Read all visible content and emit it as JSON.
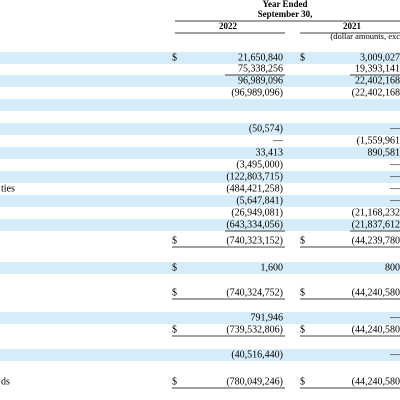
{
  "header": {
    "period_lines": [
      "Year Ended",
      "September 30,"
    ],
    "columns": [
      "2022",
      "2021"
    ],
    "note": "(dollar amounts, exc"
  },
  "rows": [
    {
      "dollar_2022": "$",
      "v2022": "21,650,840",
      "dollar_2021": "$",
      "v2021": "3,009,027"
    },
    {
      "v2022": "75,338,256",
      "v2021": "19,393,141"
    },
    {
      "v2022": "96,989,096",
      "v2021": "22,402,168"
    },
    {
      "v2022": "(96,989,096)",
      "v2021": "(22,402,168"
    },
    {
      "v2022": "(50,574)",
      "v2021": "—"
    },
    {
      "v2022": "—",
      "v2021": "(1,559,961"
    },
    {
      "v2022": "33,413",
      "v2021": "890,581"
    },
    {
      "v2022": "(3,495,000)",
      "v2021": "—"
    },
    {
      "v2022": "(122,803,715)",
      "v2021": "—"
    },
    {
      "label": "ties",
      "v2022": "(484,421,258)",
      "v2021": "—"
    },
    {
      "v2022": "(5,647,841)",
      "v2021": "—"
    },
    {
      "v2022": "(26,949,081)",
      "v2021": "(21,168,232"
    },
    {
      "v2022": "(643,334,056)",
      "v2021": "(21,837,612"
    },
    {
      "dollar_2022": "$",
      "v2022": "(740,323,152)",
      "dollar_2021": "$",
      "v2021": "(44,239,780"
    },
    {
      "dollar_2022": "$",
      "v2022": "1,600",
      "v2021": "800"
    },
    {
      "dollar_2022": "$",
      "v2022": "(740,324,752)",
      "dollar_2021": "$",
      "v2021": "(44,240,580"
    },
    {
      "v2022": "791,946",
      "v2021": "—"
    },
    {
      "dollar_2022": "$",
      "v2022": "(739,532,806)",
      "dollar_2021": "$",
      "v2021": "(44,240,580"
    },
    {
      "v2022": "(40,516,440)",
      "v2021": "—"
    },
    {
      "label": "ds",
      "dollar_2022": "$",
      "v2022": "(780,049,246)",
      "dollar_2021": "$",
      "v2021": "(44,240,580"
    }
  ]
}
